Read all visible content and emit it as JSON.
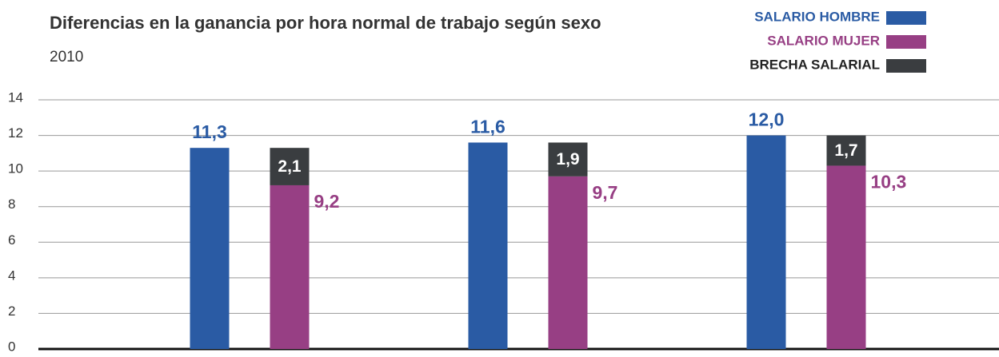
{
  "chart_data": {
    "type": "bar",
    "title": "Diferencias en la ganancia por hora normal de trabajo según sexo",
    "subtitle": "2010",
    "categories": [
      null,
      null,
      null
    ],
    "series": [
      {
        "name": "SALARIO HOMBRE",
        "color": "#2a5ba4",
        "values": [
          11.3,
          11.6,
          12.0
        ],
        "value_labels": [
          "11,3",
          "11,6",
          "12,0"
        ]
      },
      {
        "name": "SALARIO MUJER",
        "color": "#973f84",
        "values": [
          9.2,
          9.7,
          10.3
        ],
        "value_labels": [
          "9,2",
          "9,7",
          "10,3"
        ]
      },
      {
        "name": "BRECHA SALARIAL",
        "color": "#3a3d40",
        "values": [
          2.1,
          1.9,
          1.7
        ],
        "value_labels": [
          "2,1",
          "1,9",
          "1,7"
        ],
        "stacked": true
      }
    ],
    "ylim": [
      0,
      14
    ],
    "yticks": [
      0,
      2,
      4,
      6,
      8,
      10,
      12,
      14
    ],
    "grid": true,
    "legend": "top-right"
  }
}
